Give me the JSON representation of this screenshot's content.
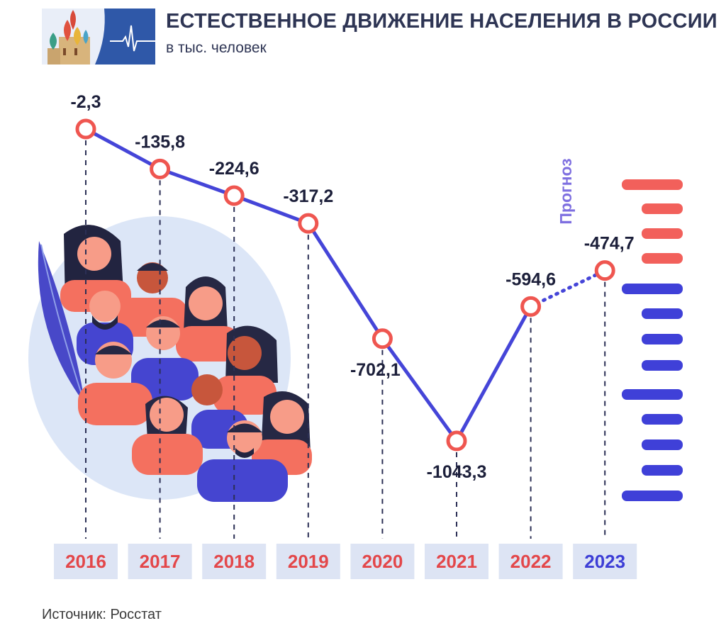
{
  "header": {
    "title": "ЕСТЕСТВЕННОЕ ДВИЖЕНИЕ НАСЕЛЕНИЯ В РОССИИ",
    "subtitle": "в тыс. человек"
  },
  "footer": {
    "source": "Источник: Росстат"
  },
  "colors": {
    "line": "#4545d8",
    "marker": "#ef5650",
    "past_year_text": "#e3474a",
    "forecast_year_text": "#3d3ed6",
    "year_box": "#dde4f4",
    "forecast_label": "#7e6fe0",
    "stripe_red": "#f2605b",
    "stripe_blue": "#3f40d8"
  },
  "chart_data": {
    "type": "line",
    "title": "ЕСТЕСТВЕННОЕ ДВИЖЕНИЕ НАСЕЛЕНИЯ В РОССИИ",
    "subtitle": "в тыс. человек",
    "categories": [
      "2016",
      "2017",
      "2018",
      "2019",
      "2020",
      "2021",
      "2022",
      "2023"
    ],
    "values": [
      -2.3,
      -135.8,
      -224.6,
      -317.2,
      -702.1,
      -1043.3,
      -594.6,
      -474.7
    ],
    "labels": [
      "-2,3",
      "-135,8",
      "-224,6",
      "-317,2",
      "-702,1",
      "-1043,3",
      "-594,6",
      "-474,7"
    ],
    "forecast_from_index": 7,
    "forecast_label": "Прогноз",
    "grid": false,
    "legend": "none"
  }
}
